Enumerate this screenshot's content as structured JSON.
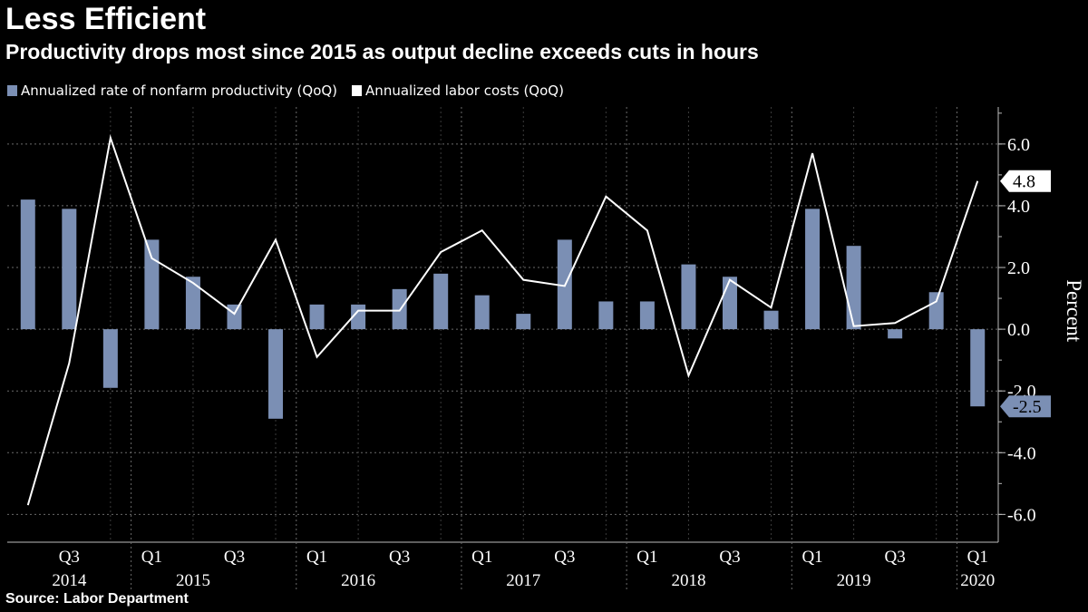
{
  "header": {
    "title": "Less Efficient",
    "subtitle": "Productivity drops most since 2015 as output decline exceeds cuts in hours"
  },
  "footer": {
    "source": "Source: Labor Department"
  },
  "chart_data": {
    "type": "bar",
    "categories": [
      "2014 Q2",
      "2014 Q3",
      "2014 Q4",
      "2015 Q1",
      "2015 Q2",
      "2015 Q3",
      "2015 Q4",
      "2016 Q1",
      "2016 Q2",
      "2016 Q3",
      "2016 Q4",
      "2017 Q1",
      "2017 Q2",
      "2017 Q3",
      "2017 Q4",
      "2018 Q1",
      "2018 Q2",
      "2018 Q3",
      "2018 Q4",
      "2019 Q1",
      "2019 Q2",
      "2019 Q3",
      "2019 Q4",
      "2020 Q1"
    ],
    "series": [
      {
        "name": "Annualized rate of nonfarm productivity (QoQ)",
        "type": "bar",
        "color": "#7b8fb4",
        "values": [
          4.2,
          3.9,
          -1.9,
          2.9,
          1.7,
          0.8,
          -2.9,
          0.8,
          0.8,
          1.3,
          1.8,
          1.1,
          0.5,
          2.9,
          0.9,
          0.9,
          2.1,
          1.7,
          0.6,
          3.9,
          2.7,
          -0.3,
          1.2,
          -2.5
        ]
      },
      {
        "name": "Annualized labor costs (QoQ)",
        "type": "line",
        "color": "#ffffff",
        "values": [
          -5.7,
          -1.1,
          6.2,
          2.3,
          1.5,
          0.5,
          2.9,
          -0.9,
          0.6,
          0.6,
          2.5,
          3.2,
          1.6,
          1.4,
          4.3,
          3.2,
          -1.5,
          1.6,
          0.7,
          5.7,
          0.1,
          0.2,
          0.9,
          4.8
        ]
      }
    ],
    "ylim": [
      -6.9,
      7.2
    ],
    "yticks": [
      6.0,
      4.0,
      2.0,
      0.0,
      -2.0,
      -4.0,
      -6.0
    ],
    "ylabel": "Percent",
    "x_tick_labels": [
      {
        "label": "Q3",
        "index": 1
      },
      {
        "label": "Q1",
        "index": 3
      },
      {
        "label": "Q3",
        "index": 5
      },
      {
        "label": "Q1",
        "index": 7
      },
      {
        "label": "Q3",
        "index": 9
      },
      {
        "label": "Q1",
        "index": 11
      },
      {
        "label": "Q3",
        "index": 13
      },
      {
        "label": "Q1",
        "index": 15
      },
      {
        "label": "Q3",
        "index": 17
      },
      {
        "label": "Q1",
        "index": 19
      },
      {
        "label": "Q3",
        "index": 21
      },
      {
        "label": "Q1",
        "index": 23
      }
    ],
    "year_labels": [
      {
        "label": "2014",
        "index": 1
      },
      {
        "label": "2015",
        "index": 4
      },
      {
        "label": "2016",
        "index": 8
      },
      {
        "label": "2017",
        "index": 12
      },
      {
        "label": "2018",
        "index": 16
      },
      {
        "label": "2019",
        "index": 20
      },
      {
        "label": "2020",
        "index": 23
      }
    ],
    "year_boundaries": [
      2.5,
      6.5,
      10.5,
      14.5,
      18.5,
      22.5
    ],
    "callouts": [
      {
        "label": "4.8",
        "series": 1,
        "value": 4.8
      },
      {
        "label": "-2.5",
        "series": 0,
        "value": -2.5
      }
    ],
    "grid": true,
    "legend": "top-left"
  }
}
